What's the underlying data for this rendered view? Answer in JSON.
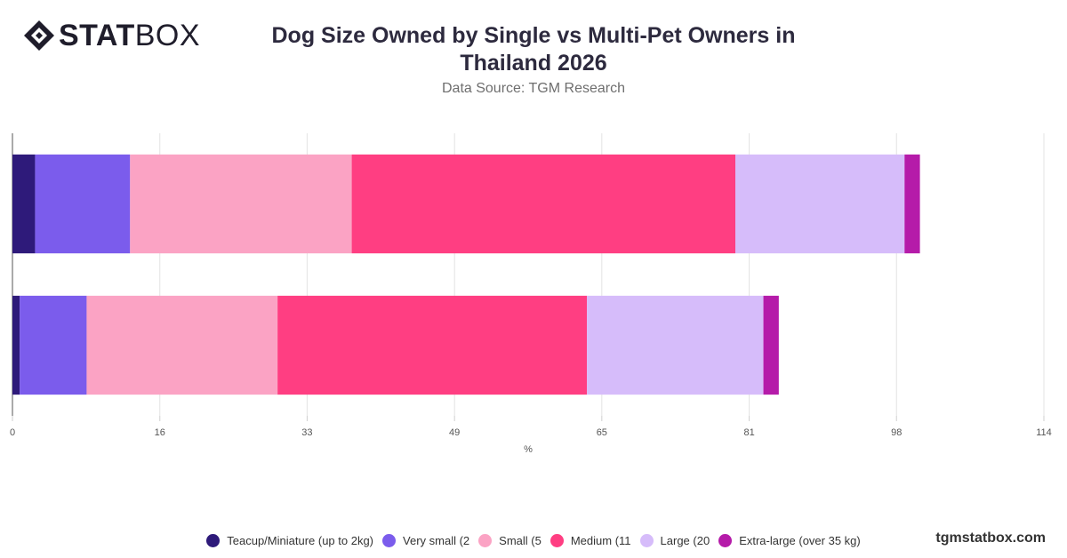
{
  "brand": {
    "logo_bold": "STAT",
    "logo_light": "BOX",
    "site": "tgmstatbox.com"
  },
  "chart_data": {
    "type": "bar",
    "orientation": "horizontal",
    "stacked": true,
    "title": "Dog Size Owned by Single vs Multi-Pet Owners in Thailand 2026",
    "subtitle": "Data Source: TGM Research",
    "xlabel": "%",
    "ylabel": "",
    "xlim": [
      0,
      114
    ],
    "xticks": [
      "0",
      "16",
      "33",
      "49",
      "65",
      "81",
      "98",
      "114"
    ],
    "xtick_values": [
      0,
      16.29,
      32.57,
      48.86,
      65.14,
      81.43,
      97.71,
      114
    ],
    "categories": [
      "",
      ""
    ],
    "grid": true,
    "legend_position": "bottom",
    "series": [
      {
        "name": "Teacup/Miniature (up to 2kg)",
        "color": "#2e1a7a",
        "values": [
          2.5,
          0.8
        ]
      },
      {
        "name": "Very small (2",
        "color": "#7b5cec",
        "values": [
          10.5,
          7.4
        ]
      },
      {
        "name": "Small (5",
        "color": "#fba3c4",
        "values": [
          24.5,
          21.1
        ]
      },
      {
        "name": "Medium (11",
        "color": "#ff3e82",
        "values": [
          42.4,
          34.2
        ]
      },
      {
        "name": "Large (20",
        "color": "#d6bcfa",
        "values": [
          18.7,
          19.5
        ]
      },
      {
        "name": "Extra-large (over 35 kg)",
        "color": "#b51ba9",
        "values": [
          1.7,
          1.7
        ]
      }
    ]
  }
}
